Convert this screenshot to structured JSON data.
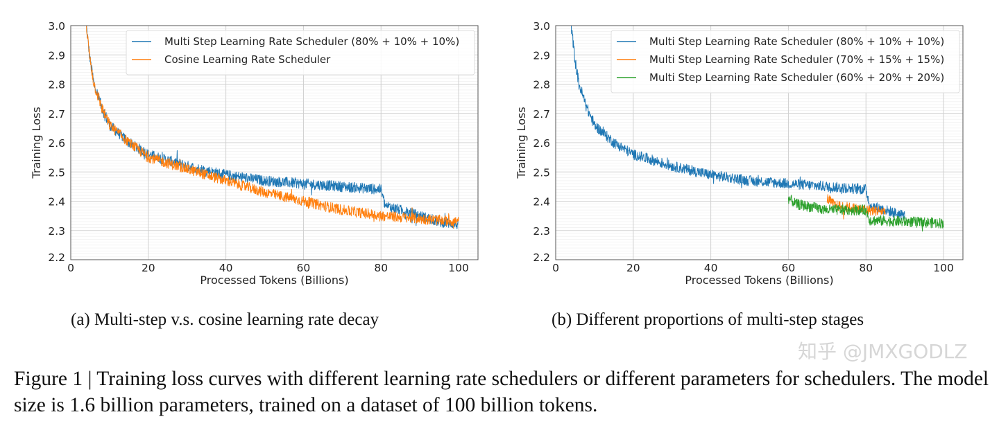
{
  "chart_data": [
    {
      "type": "line",
      "panel": "(a)",
      "xlabel": "Processed Tokens (Billions)",
      "ylabel": "Training Loss",
      "xlim": [
        0,
        105
      ],
      "ylim": [
        2.2,
        3.0
      ],
      "xticks": [
        0,
        20,
        40,
        60,
        80,
        100
      ],
      "yticks": [
        "2.2",
        "2.3",
        "2.4",
        "2.5",
        "2.6",
        "2.7",
        "2.8",
        "2.9",
        "3.0"
      ],
      "grid": true,
      "legend": "top-right",
      "series": [
        {
          "name": "Multi Step Learning Rate Scheduler (80% + 10% + 10%)",
          "color": "#1f77b4",
          "x": [
            4,
            5,
            6,
            8,
            10,
            15,
            20,
            25,
            30,
            40,
            50,
            60,
            70,
            80,
            81,
            85,
            90,
            95,
            100
          ],
          "y": [
            3.0,
            2.88,
            2.8,
            2.72,
            2.66,
            2.6,
            2.56,
            2.54,
            2.52,
            2.49,
            2.47,
            2.46,
            2.45,
            2.44,
            2.385,
            2.37,
            2.35,
            2.33,
            2.32
          ]
        },
        {
          "name": "Cosine Learning Rate Scheduler",
          "color": "#ff7f0e",
          "x": [
            4,
            5,
            6,
            8,
            10,
            15,
            20,
            25,
            30,
            40,
            50,
            60,
            70,
            80,
            90,
            100
          ],
          "y": [
            3.0,
            2.88,
            2.8,
            2.72,
            2.66,
            2.6,
            2.55,
            2.53,
            2.51,
            2.47,
            2.43,
            2.4,
            2.37,
            2.35,
            2.34,
            2.33
          ]
        }
      ]
    },
    {
      "type": "line",
      "panel": "(b)",
      "xlabel": "Processed Tokens (Billions)",
      "ylabel": "Training Loss",
      "xlim": [
        0,
        105
      ],
      "ylim": [
        2.2,
        3.0
      ],
      "xticks": [
        0,
        20,
        40,
        60,
        80,
        100
      ],
      "yticks": [
        "2.2",
        "2.3",
        "2.4",
        "2.5",
        "2.6",
        "2.7",
        "2.8",
        "2.9",
        "3.0"
      ],
      "grid": true,
      "legend": "top-right",
      "series": [
        {
          "name": "Multi Step Learning Rate Scheduler (80% + 10% + 10%)",
          "color": "#1f77b4",
          "x": [
            4,
            5,
            6,
            8,
            10,
            15,
            20,
            25,
            30,
            40,
            50,
            60,
            70,
            80,
            81,
            85,
            90
          ],
          "y": [
            3.0,
            2.88,
            2.8,
            2.72,
            2.66,
            2.6,
            2.56,
            2.54,
            2.52,
            2.49,
            2.47,
            2.46,
            2.45,
            2.44,
            2.385,
            2.37,
            2.35
          ]
        },
        {
          "name": "Multi Step Learning Rate Scheduler (70% + 15% + 15%)",
          "color": "#ff7f0e",
          "x": [
            70,
            72,
            80,
            85
          ],
          "y": [
            2.41,
            2.385,
            2.37,
            2.365
          ]
        },
        {
          "name": "Multi Step Learning Rate Scheduler (60% + 20% + 20%)",
          "color": "#2ca02c",
          "x": [
            60,
            62,
            70,
            80,
            81,
            90,
            100
          ],
          "y": [
            2.41,
            2.39,
            2.37,
            2.37,
            2.335,
            2.33,
            2.325
          ]
        }
      ]
    }
  ],
  "subcaptions": {
    "a": "(a)  Multi-step v.s. cosine learning rate decay",
    "b": "(b)  Different proportions of multi-step stages"
  },
  "caption": "Figure 1 | Training loss curves with different learning rate schedulers or different parameters for schedulers. The model size is 1.6 billion parameters, trained on a dataset of 100 billion tokens.",
  "watermark": "知乎 @JMXGODLZ"
}
